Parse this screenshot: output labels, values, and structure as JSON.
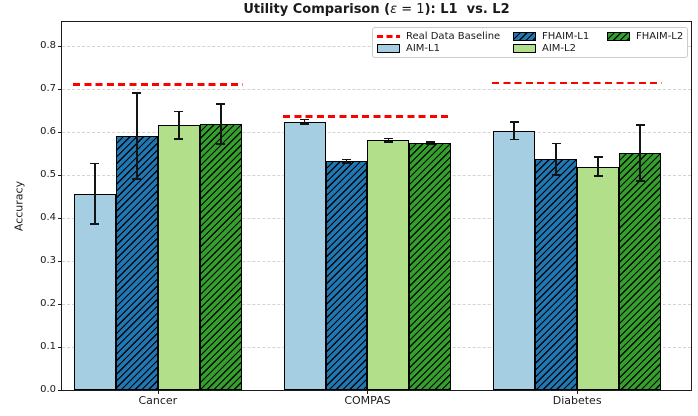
{
  "title": {
    "pre": "Utility Comparison (",
    "epsilon": "ε",
    "mid": " = 1",
    "post": "): L1  vs. L2"
  },
  "chart_data": {
    "type": "bar",
    "title": "Utility Comparison (ε = 1): L1  vs. L2",
    "ylabel": "Accuracy",
    "xlabel": "",
    "ylim": [
      0,
      0.855
    ],
    "yticks": [
      "0.0",
      "0.1",
      "0.2",
      "0.3",
      "0.4",
      "0.5",
      "0.6",
      "0.7",
      "0.8"
    ],
    "grid": "horizontal-dashed",
    "bar_edge_color": "#000000",
    "categories": [
      "Cancer",
      "COMPAS",
      "Diabetes"
    ],
    "series": [
      {
        "name": "AIM-L1",
        "color": "#a6cee3",
        "hatch": false,
        "values": [
          0.456,
          0.623,
          0.602
        ],
        "errors": [
          0.07,
          0.005,
          0.02
        ]
      },
      {
        "name": "FHAIM-L1",
        "color": "#1f78b4",
        "hatch": true,
        "values": [
          0.59,
          0.532,
          0.536
        ],
        "errors": [
          0.1,
          0.004,
          0.037
        ]
      },
      {
        "name": "AIM-L2",
        "color": "#b2df8a",
        "hatch": false,
        "values": [
          0.615,
          0.58,
          0.519
        ],
        "errors": [
          0.032,
          0.004,
          0.022
        ]
      },
      {
        "name": "FHAIM-L2",
        "color": "#33a02c",
        "hatch": true,
        "values": [
          0.618,
          0.573,
          0.55
        ],
        "errors": [
          0.046,
          0.003,
          0.065
        ]
      }
    ],
    "baseline": {
      "label": "Real Data Baseline",
      "color": "#ff0000",
      "style": "dashed",
      "values": [
        0.71,
        0.636,
        0.713
      ]
    },
    "legend": {
      "position": "upper right",
      "order": [
        "baseline",
        "AIM-L1",
        "FHAIM-L1",
        "AIM-L2",
        "FHAIM-L2"
      ]
    }
  }
}
